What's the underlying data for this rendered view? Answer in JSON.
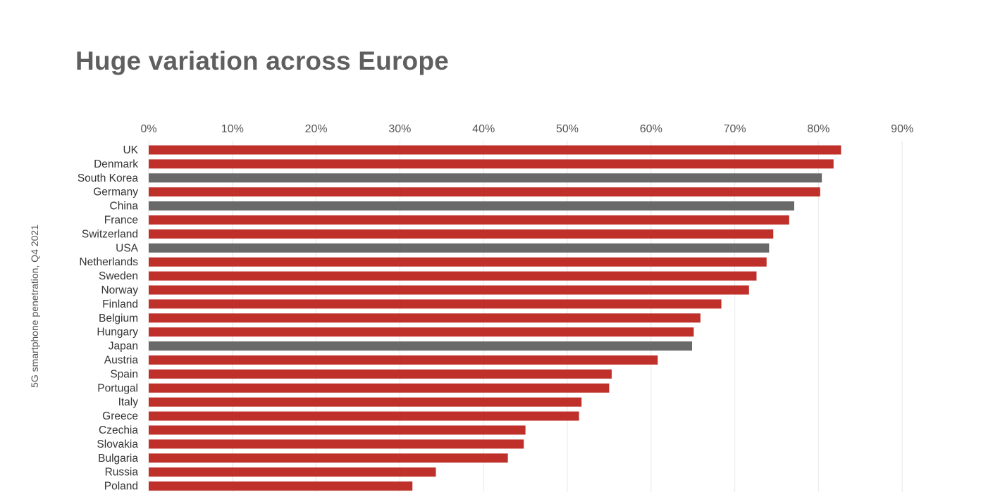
{
  "chart_data": {
    "type": "bar",
    "orientation": "horizontal",
    "title": "Huge variation across Europe",
    "ylabel": "5G smartphone penetration, Q4 2021",
    "xlim": [
      0,
      90
    ],
    "x_ticks": [
      "0%",
      "10%",
      "20%",
      "30%",
      "40%",
      "50%",
      "60%",
      "70%",
      "80%",
      "90%"
    ],
    "x_axis_position": "top",
    "grid": true,
    "colors": {
      "europe": "#c0302a",
      "non_europe": "#696969",
      "grid": "#e8e8e8"
    },
    "categories": [
      "UK",
      "Denmark",
      "South Korea",
      "Germany",
      "China",
      "France",
      "Switzerland",
      "USA",
      "Netherlands",
      "Sweden",
      "Norway",
      "Finland",
      "Belgium",
      "Hungary",
      "Japan",
      "Austria",
      "Spain",
      "Portugal",
      "Italy",
      "Greece",
      "Czechia",
      "Slovakia",
      "Bulgaria",
      "Russia",
      "Poland"
    ],
    "values": [
      82.7,
      81.8,
      80.4,
      80.2,
      77.1,
      76.5,
      74.6,
      74.1,
      73.8,
      72.6,
      71.7,
      68.4,
      65.9,
      65.1,
      64.9,
      60.8,
      55.3,
      55.0,
      51.7,
      51.4,
      45.0,
      44.8,
      42.9,
      34.3,
      31.5
    ],
    "group": [
      "europe",
      "europe",
      "non_europe",
      "europe",
      "non_europe",
      "europe",
      "europe",
      "non_europe",
      "europe",
      "europe",
      "europe",
      "europe",
      "europe",
      "europe",
      "non_europe",
      "europe",
      "europe",
      "europe",
      "europe",
      "europe",
      "europe",
      "europe",
      "europe",
      "europe",
      "europe"
    ]
  }
}
